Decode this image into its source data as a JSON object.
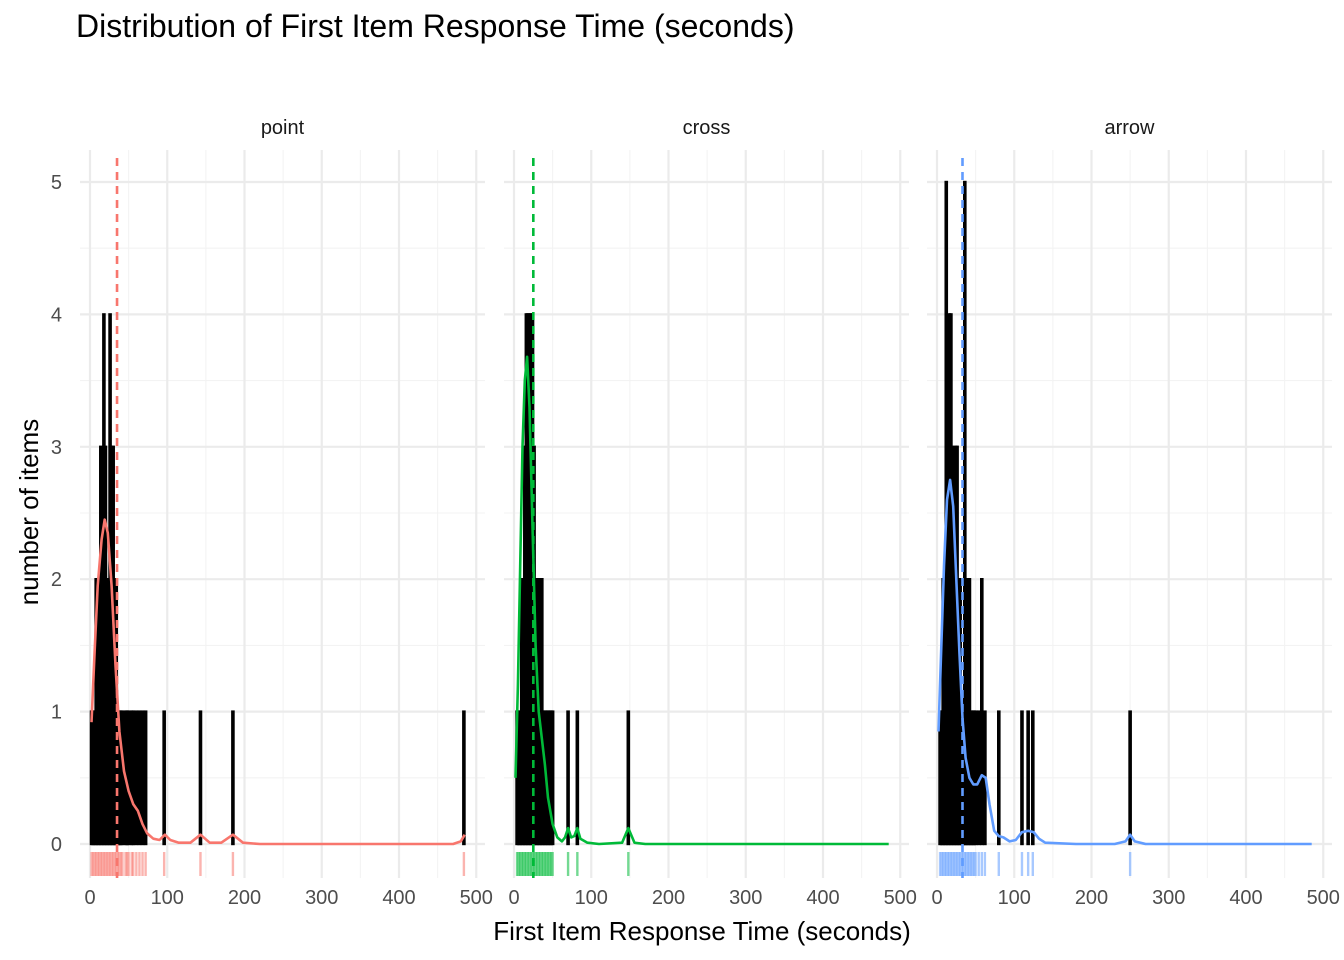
{
  "chart_data": {
    "type": "histogram",
    "title": "Distribution of First Item Response Time (seconds)",
    "xlabel": "First Item Response Time (seconds)",
    "ylabel": "number of items",
    "xlim": [
      0,
      500
    ],
    "ylim": [
      0,
      5
    ],
    "x_ticks": [
      "0",
      "100",
      "200",
      "300",
      "400",
      "500"
    ],
    "y_ticks": [
      "0",
      "1",
      "2",
      "3",
      "4",
      "5"
    ],
    "grid": true,
    "legend": "none",
    "panels": [
      {
        "name": "point",
        "color": "#F8766D",
        "mean_line": 35,
        "bars": [
          [
            2,
            1
          ],
          [
            4,
            1
          ],
          [
            6,
            1
          ],
          [
            8,
            2
          ],
          [
            10,
            1
          ],
          [
            12,
            2
          ],
          [
            14,
            3
          ],
          [
            16,
            2
          ],
          [
            18,
            4
          ],
          [
            20,
            3
          ],
          [
            22,
            2
          ],
          [
            24,
            2
          ],
          [
            26,
            4
          ],
          [
            28,
            3
          ],
          [
            30,
            3
          ],
          [
            32,
            2
          ],
          [
            34,
            2
          ],
          [
            36,
            1
          ],
          [
            38,
            1
          ],
          [
            40,
            1
          ],
          [
            42,
            1
          ],
          [
            46,
            1
          ],
          [
            48,
            1
          ],
          [
            50,
            1
          ],
          [
            54,
            1
          ],
          [
            56,
            1
          ],
          [
            60,
            1
          ],
          [
            64,
            1
          ],
          [
            68,
            1
          ],
          [
            72,
            1
          ],
          [
            96,
            1
          ],
          [
            143,
            1
          ],
          [
            185,
            1
          ],
          [
            484,
            1
          ]
        ],
        "density": [
          [
            2,
            0.92
          ],
          [
            6,
            1.45
          ],
          [
            10,
            1.95
          ],
          [
            15,
            2.3
          ],
          [
            19,
            2.45
          ],
          [
            23,
            2.35
          ],
          [
            28,
            1.95
          ],
          [
            33,
            1.35
          ],
          [
            38,
            0.85
          ],
          [
            44,
            0.55
          ],
          [
            50,
            0.4
          ],
          [
            56,
            0.3
          ],
          [
            62,
            0.25
          ],
          [
            68,
            0.15
          ],
          [
            74,
            0.08
          ],
          [
            82,
            0.04
          ],
          [
            90,
            0.03
          ],
          [
            97,
            0.07
          ],
          [
            104,
            0.03
          ],
          [
            115,
            0.01
          ],
          [
            130,
            0.01
          ],
          [
            143,
            0.07
          ],
          [
            155,
            0.01
          ],
          [
            170,
            0.01
          ],
          [
            185,
            0.07
          ],
          [
            198,
            0.01
          ],
          [
            220,
            0
          ],
          [
            300,
            0
          ],
          [
            400,
            0
          ],
          [
            470,
            0
          ],
          [
            480,
            0.02
          ],
          [
            485,
            0.07
          ]
        ],
        "rug": [
          2,
          4,
          6,
          8,
          10,
          12,
          14,
          16,
          18,
          20,
          22,
          24,
          26,
          28,
          30,
          32,
          34,
          36,
          38,
          40,
          42,
          46,
          48,
          50,
          54,
          56,
          60,
          64,
          68,
          72,
          96,
          143,
          185,
          484
        ]
      },
      {
        "name": "cross",
        "color": "#00BA38",
        "mean_line": 25,
        "bars": [
          [
            4,
            1
          ],
          [
            6,
            1
          ],
          [
            8,
            1
          ],
          [
            10,
            2
          ],
          [
            12,
            2
          ],
          [
            14,
            3
          ],
          [
            16,
            4
          ],
          [
            18,
            4
          ],
          [
            20,
            4
          ],
          [
            22,
            4
          ],
          [
            24,
            4
          ],
          [
            26,
            3
          ],
          [
            28,
            2
          ],
          [
            30,
            2
          ],
          [
            32,
            2
          ],
          [
            34,
            2
          ],
          [
            36,
            2
          ],
          [
            38,
            1
          ],
          [
            40,
            1
          ],
          [
            42,
            1
          ],
          [
            44,
            1
          ],
          [
            46,
            1
          ],
          [
            48,
            1
          ],
          [
            50,
            1
          ],
          [
            70,
            1
          ],
          [
            82,
            1
          ],
          [
            148,
            1
          ]
        ],
        "density": [
          [
            2,
            0.5
          ],
          [
            5,
            1.2
          ],
          [
            8,
            2.1
          ],
          [
            11,
            3.0
          ],
          [
            14,
            3.5
          ],
          [
            17,
            3.68
          ],
          [
            20,
            3.3
          ],
          [
            24,
            2.4
          ],
          [
            28,
            1.5
          ],
          [
            32,
            1.0
          ],
          [
            36,
            0.8
          ],
          [
            40,
            0.6
          ],
          [
            44,
            0.35
          ],
          [
            50,
            0.15
          ],
          [
            56,
            0.05
          ],
          [
            62,
            0.02
          ],
          [
            66,
            0.05
          ],
          [
            70,
            0.12
          ],
          [
            74,
            0.05
          ],
          [
            78,
            0.06
          ],
          [
            82,
            0.12
          ],
          [
            86,
            0.04
          ],
          [
            95,
            0.01
          ],
          [
            110,
            0
          ],
          [
            140,
            0.01
          ],
          [
            148,
            0.12
          ],
          [
            156,
            0.01
          ],
          [
            170,
            0
          ],
          [
            300,
            0
          ],
          [
            400,
            0
          ],
          [
            485,
            0
          ]
        ],
        "rug": [
          4,
          6,
          8,
          10,
          12,
          14,
          16,
          18,
          20,
          22,
          24,
          26,
          28,
          30,
          32,
          34,
          36,
          38,
          40,
          42,
          44,
          46,
          48,
          50,
          70,
          82,
          148
        ]
      },
      {
        "name": "arrow",
        "color": "#619CFF",
        "mean_line": 33,
        "bars": [
          [
            4,
            1
          ],
          [
            6,
            1
          ],
          [
            8,
            2
          ],
          [
            10,
            2
          ],
          [
            12,
            5
          ],
          [
            14,
            3
          ],
          [
            16,
            4
          ],
          [
            18,
            4
          ],
          [
            20,
            3
          ],
          [
            22,
            2
          ],
          [
            24,
            3
          ],
          [
            26,
            3
          ],
          [
            28,
            2
          ],
          [
            30,
            2
          ],
          [
            32,
            1
          ],
          [
            34,
            1
          ],
          [
            36,
            5
          ],
          [
            38,
            2
          ],
          [
            40,
            1
          ],
          [
            42,
            2
          ],
          [
            44,
            1
          ],
          [
            46,
            1
          ],
          [
            48,
            1
          ],
          [
            50,
            1
          ],
          [
            54,
            1
          ],
          [
            58,
            2
          ],
          [
            62,
            1
          ],
          [
            80,
            1
          ],
          [
            110,
            1
          ],
          [
            118,
            1
          ],
          [
            124,
            1
          ],
          [
            250,
            1
          ]
        ],
        "density": [
          [
            2,
            0.85
          ],
          [
            5,
            1.4
          ],
          [
            9,
            2.1
          ],
          [
            13,
            2.6
          ],
          [
            17,
            2.75
          ],
          [
            21,
            2.55
          ],
          [
            25,
            2.0
          ],
          [
            29,
            1.45
          ],
          [
            33,
            0.95
          ],
          [
            37,
            0.65
          ],
          [
            42,
            0.5
          ],
          [
            47,
            0.45
          ],
          [
            52,
            0.45
          ],
          [
            58,
            0.52
          ],
          [
            63,
            0.5
          ],
          [
            68,
            0.3
          ],
          [
            74,
            0.1
          ],
          [
            80,
            0.06
          ],
          [
            86,
            0.05
          ],
          [
            94,
            0.02
          ],
          [
            102,
            0.03
          ],
          [
            110,
            0.09
          ],
          [
            118,
            0.1
          ],
          [
            125,
            0.09
          ],
          [
            132,
            0.04
          ],
          [
            140,
            0.01
          ],
          [
            180,
            0
          ],
          [
            230,
            0
          ],
          [
            244,
            0.02
          ],
          [
            250,
            0.07
          ],
          [
            256,
            0.02
          ],
          [
            270,
            0
          ],
          [
            400,
            0
          ],
          [
            485,
            0
          ]
        ],
        "rug": [
          4,
          6,
          8,
          10,
          12,
          14,
          16,
          18,
          20,
          22,
          24,
          26,
          28,
          30,
          32,
          34,
          36,
          38,
          40,
          42,
          44,
          46,
          48,
          50,
          54,
          58,
          62,
          80,
          110,
          118,
          124,
          250
        ]
      }
    ]
  }
}
